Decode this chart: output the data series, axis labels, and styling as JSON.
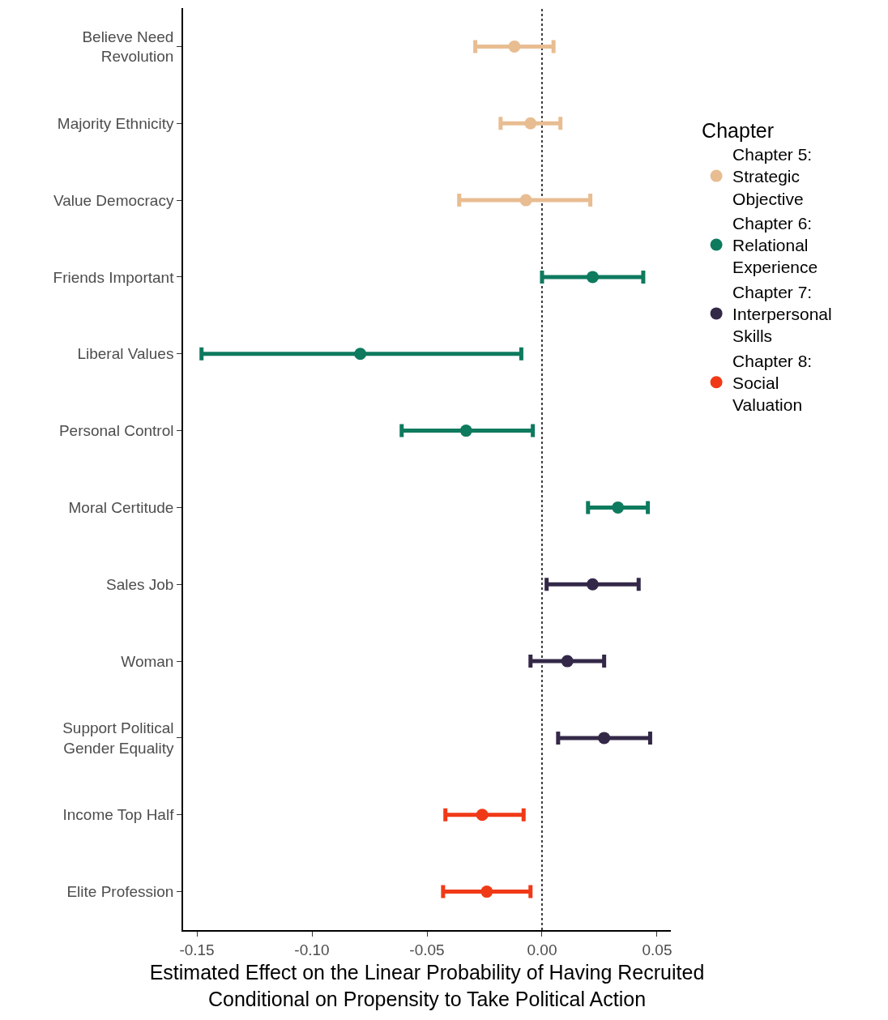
{
  "chart_data": {
    "type": "scatter",
    "orientation": "horizontal",
    "marker": "circle",
    "grid": false,
    "legend": "right",
    "legend_title": "Chapter",
    "xlabel": "Estimated Effect on the Linear Probability of Having Recruited\nConditional on Propensity to Take Political Action",
    "categories": [
      "Believe Need\nRevolution",
      "Majority Ethnicity",
      "Value Democracy",
      "Friends Important",
      "Liberal Values",
      "Personal Control",
      "Moral Certitude",
      "Sales Job",
      "Woman",
      "Support Political\nGender Equality",
      "Income Top Half",
      "Elite Profession"
    ],
    "xlim": [
      -0.156,
      0.056
    ],
    "xticks": [
      {
        "value": -0.15,
        "label": "-0.15"
      },
      {
        "value": -0.1,
        "label": "-0.10"
      },
      {
        "value": -0.05,
        "label": "-0.05"
      },
      {
        "value": 0,
        "label": "0.00"
      },
      {
        "value": 0.05,
        "label": "0.05"
      }
    ],
    "ref_lines": [
      {
        "axis": "x",
        "value": 0,
        "line_style": "dotted",
        "color": "#000000"
      }
    ],
    "series": [
      {
        "name": "Chapter 5:\nStrategic\nObjective",
        "color": "#e8bd92",
        "values": [
          -0.012,
          -0.005,
          -0.007,
          null,
          null,
          null,
          null,
          null,
          null,
          null,
          null,
          null
        ],
        "errors": [
          [
            -0.029,
            0.005
          ],
          [
            -0.018,
            0.008
          ],
          [
            -0.036,
            0.021
          ],
          null,
          null,
          null,
          null,
          null,
          null,
          null,
          null,
          null
        ]
      },
      {
        "name": "Chapter 6:\nRelational\nExperience",
        "color": "#0e7a5e",
        "values": [
          null,
          null,
          null,
          0.022,
          -0.079,
          -0.033,
          0.033,
          null,
          null,
          null,
          null,
          null
        ],
        "errors": [
          null,
          null,
          null,
          [
            0.0,
            0.044
          ],
          [
            -0.148,
            -0.009
          ],
          [
            -0.061,
            -0.004
          ],
          [
            0.02,
            0.046
          ],
          null,
          null,
          null,
          null,
          null
        ]
      },
      {
        "name": "Chapter 7:\nInterpersonal\nSkills",
        "color": "#342848",
        "values": [
          null,
          null,
          null,
          null,
          null,
          null,
          null,
          0.022,
          0.011,
          0.027,
          null,
          null
        ],
        "errors": [
          null,
          null,
          null,
          null,
          null,
          null,
          null,
          [
            0.002,
            0.042
          ],
          [
            -0.005,
            0.027
          ],
          [
            0.007,
            0.047
          ],
          null,
          null
        ]
      },
      {
        "name": "Chapter 8:\nSocial\nValuation",
        "color": "#f03a17",
        "values": [
          null,
          null,
          null,
          null,
          null,
          null,
          null,
          null,
          null,
          null,
          -0.026,
          -0.024
        ],
        "errors": [
          null,
          null,
          null,
          null,
          null,
          null,
          null,
          null,
          null,
          null,
          [
            -0.042,
            -0.008
          ],
          [
            -0.043,
            -0.005
          ]
        ]
      }
    ]
  }
}
